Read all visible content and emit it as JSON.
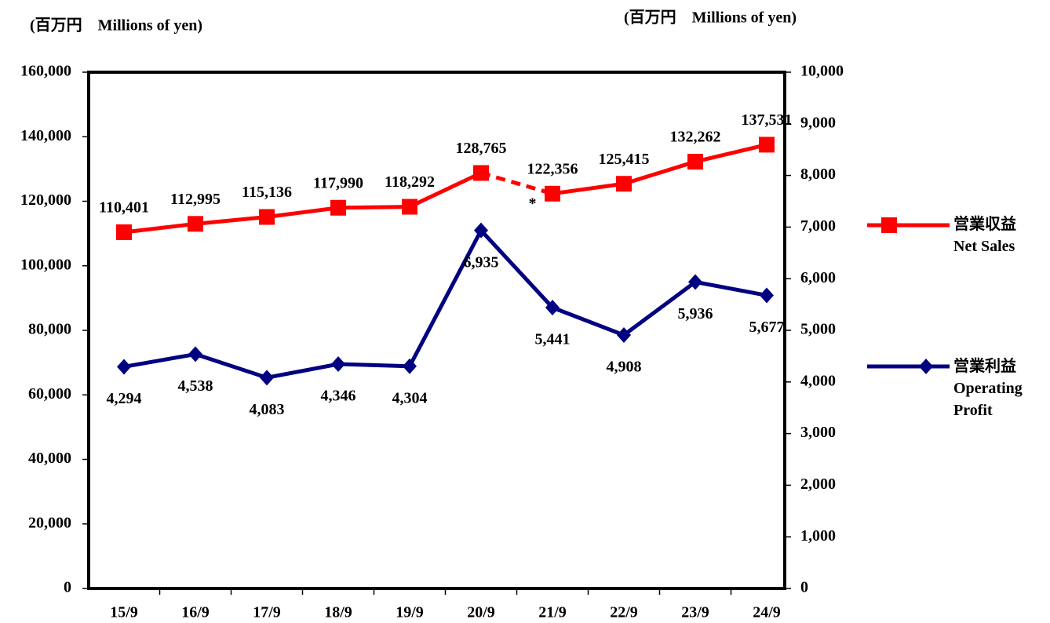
{
  "chart_data": {
    "type": "line",
    "ylabel": "(百万円　Millions of yen)",
    "y2label": "(百万円　Millions of yen)",
    "categories": [
      "15/9",
      "16/9",
      "17/9",
      "18/9",
      "19/9",
      "20/9",
      "21/9",
      "22/9",
      "23/9",
      "24/9"
    ],
    "ylim": [
      0,
      160000
    ],
    "yticks": [
      0,
      {
        "value": 20000,
        "label": "20,000"
      },
      {
        "value": 40000,
        "label": "40,000"
      },
      {
        "value": 60000,
        "label": "60,000"
      },
      {
        "value": 80000,
        "label": "80,000"
      },
      {
        "value": 100000,
        "label": "100,000"
      },
      {
        "value": 120000,
        "label": "120,000"
      },
      {
        "value": 140000,
        "label": "140,000"
      },
      {
        "value": 160000,
        "label": "160,000"
      }
    ],
    "y2lim": [
      0,
      10000
    ],
    "y2ticks": [
      0,
      {
        "value": 1000,
        "label": "1,000"
      },
      {
        "value": 2000,
        "label": "2,000"
      },
      {
        "value": 3000,
        "label": "3,000"
      },
      {
        "value": 4000,
        "label": "4,000"
      },
      {
        "value": 5000,
        "label": "5,000"
      },
      {
        "value": 6000,
        "label": "6,000"
      },
      {
        "value": 7000,
        "label": "7,000"
      },
      {
        "value": 8000,
        "label": "8,000"
      },
      {
        "value": 9000,
        "label": "9,000"
      },
      {
        "value": 10000,
        "label": "10,000"
      }
    ],
    "annotation": "*",
    "series": [
      {
        "name": "営業収益",
        "name_en": "Net Sales",
        "color": "#ff0000",
        "marker": "square",
        "axis": "y",
        "dashed_after_index": 5,
        "values": [
          110401,
          112995,
          115136,
          117990,
          118292,
          128765,
          122356,
          125415,
          132262,
          137531
        ],
        "value_labels": [
          "110,401",
          "112,995",
          "115,136",
          "117,990",
          "118,292",
          "128,765",
          "122,356",
          "125,415",
          "132,262",
          "137,531"
        ]
      },
      {
        "name": "営業利益",
        "name_en": "Operating Profit",
        "color": "#000080",
        "marker": "diamond",
        "axis": "y2",
        "values": [
          4294,
          4538,
          4083,
          4346,
          4304,
          6935,
          5441,
          4908,
          5936,
          5677
        ],
        "value_labels": [
          "4,294",
          "4,538",
          "4,083",
          "4,346",
          "4,304",
          "6,935",
          "5,441",
          "4,908",
          "5,936",
          "5,677"
        ]
      }
    ]
  }
}
